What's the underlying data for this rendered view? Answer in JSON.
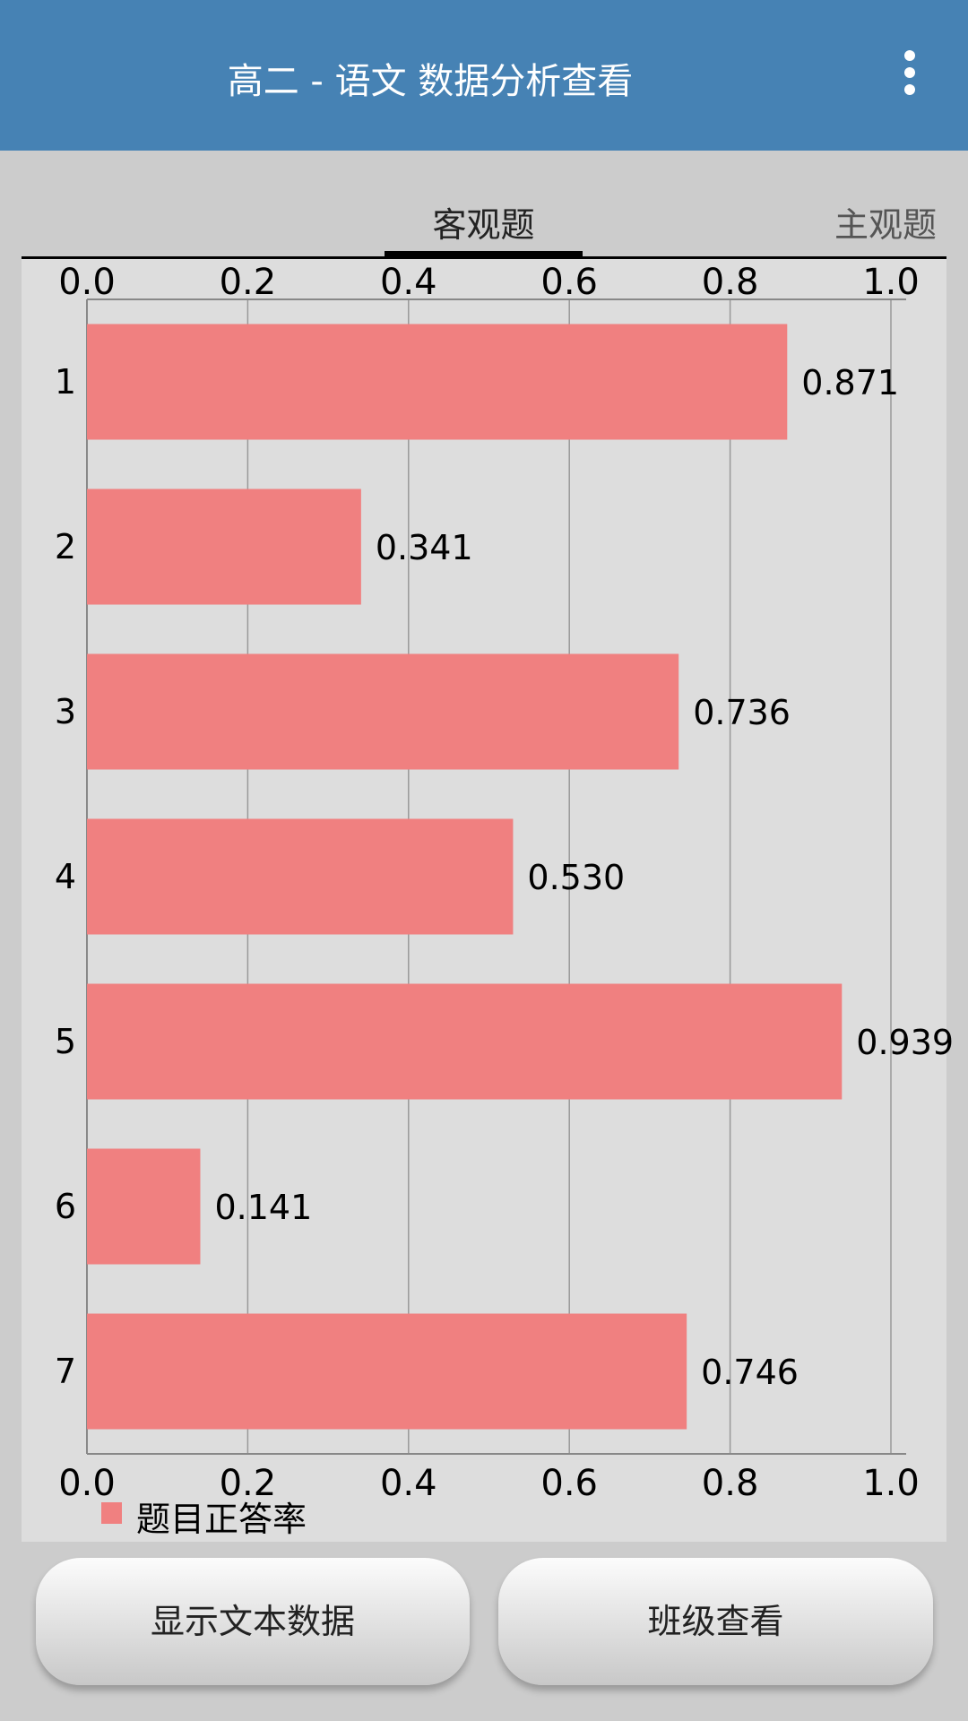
{
  "header": {
    "title": "高二 - 语文 数据分析查看",
    "menu_icon": "more-vert-icon"
  },
  "tabs": [
    {
      "label": "客观题",
      "selected": true
    },
    {
      "label": "主观题",
      "selected": false
    }
  ],
  "chart_data": {
    "type": "bar",
    "orientation": "horizontal",
    "categories": [
      "1",
      "2",
      "3",
      "4",
      "5",
      "6",
      "7"
    ],
    "series": [
      {
        "name": "题目正答率",
        "values": [
          0.871,
          0.341,
          0.736,
          0.53,
          0.939,
          0.141,
          0.746
        ],
        "color": "#f08080"
      }
    ],
    "data_labels": [
      "0.871",
      "0.341",
      "0.736",
      "0.530",
      "0.939",
      "0.141",
      "0.746"
    ],
    "xlim": [
      0,
      1.0
    ],
    "x_ticks": [
      "0.0",
      "0.2",
      "0.4",
      "0.6",
      "0.8",
      "1.0"
    ],
    "grid": true,
    "legend": "bottom-left"
  },
  "buttons": {
    "show_text": "显示文本数据",
    "class_view": "班级查看"
  }
}
